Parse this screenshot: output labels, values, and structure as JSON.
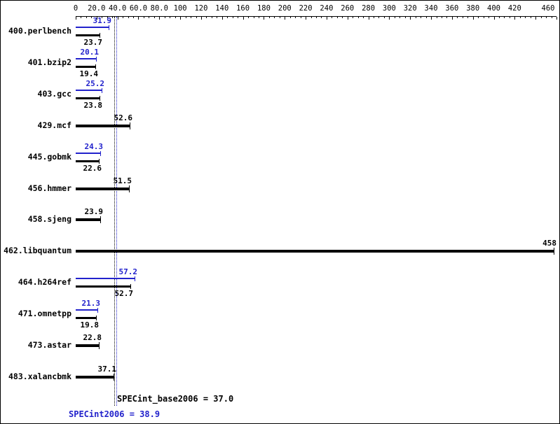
{
  "chart_data": {
    "type": "bar",
    "orientation": "horizontal",
    "title": "",
    "xlabel": "",
    "ylabel": "",
    "xlim": [
      0,
      460
    ],
    "grid": false,
    "legend": null,
    "colors": {
      "peak": "#2222cc",
      "base": "#000000"
    },
    "axis_tick_labels": [
      {
        "value": 0,
        "label": "0"
      },
      {
        "value": 20,
        "label": "20.0"
      },
      {
        "value": 40,
        "label": "40.0"
      },
      {
        "value": 60,
        "label": "60.0"
      },
      {
        "value": 80,
        "label": "80.0"
      },
      {
        "value": 100,
        "label": "100"
      },
      {
        "value": 120,
        "label": "120"
      },
      {
        "value": 140,
        "label": "140"
      },
      {
        "value": 160,
        "label": "160"
      },
      {
        "value": 180,
        "label": "180"
      },
      {
        "value": 200,
        "label": "200"
      },
      {
        "value": 220,
        "label": "220"
      },
      {
        "value": 240,
        "label": "240"
      },
      {
        "value": 260,
        "label": "260"
      },
      {
        "value": 280,
        "label": "280"
      },
      {
        "value": 300,
        "label": "300"
      },
      {
        "value": 320,
        "label": "320"
      },
      {
        "value": 340,
        "label": "340"
      },
      {
        "value": 360,
        "label": "360"
      },
      {
        "value": 380,
        "label": "380"
      },
      {
        "value": 400,
        "label": "400"
      },
      {
        "value": 420,
        "label": "420"
      },
      {
        "value": 460,
        "label": "460"
      }
    ],
    "benchmarks": [
      {
        "name": "400.perlbench",
        "peak": 31.9,
        "peak_label": "31.9",
        "base": 23.7,
        "base_label": "23.7"
      },
      {
        "name": "401.bzip2",
        "peak": 20.1,
        "peak_label": "20.1",
        "base": 19.4,
        "base_label": "19.4"
      },
      {
        "name": "403.gcc",
        "peak": 25.2,
        "peak_label": "25.2",
        "base": 23.8,
        "base_label": "23.8"
      },
      {
        "name": "429.mcf",
        "peak": null,
        "peak_label": null,
        "base": 52.6,
        "base_label": "52.6"
      },
      {
        "name": "445.gobmk",
        "peak": 24.3,
        "peak_label": "24.3",
        "base": 22.6,
        "base_label": "22.6"
      },
      {
        "name": "456.hmmer",
        "peak": null,
        "peak_label": null,
        "base": 51.5,
        "base_label": "51.5"
      },
      {
        "name": "458.sjeng",
        "peak": null,
        "peak_label": null,
        "base": 23.9,
        "base_label": "23.9"
      },
      {
        "name": "462.libquantum",
        "peak": null,
        "peak_label": null,
        "base": 458,
        "base_label": "458"
      },
      {
        "name": "464.h264ref",
        "peak": 57.2,
        "peak_label": "57.2",
        "base": 52.7,
        "base_label": "52.7"
      },
      {
        "name": "471.omnetpp",
        "peak": 21.3,
        "peak_label": "21.3",
        "base": 19.8,
        "base_label": "19.8"
      },
      {
        "name": "473.astar",
        "peak": null,
        "peak_label": null,
        "base": 22.8,
        "base_label": "22.8"
      },
      {
        "name": "483.xalancbmk",
        "peak": null,
        "peak_label": null,
        "base": 37.1,
        "base_label": "37.1"
      }
    ],
    "means": {
      "base": {
        "label": "SPECint_base2006 = 37.0",
        "value": 37.0
      },
      "peak": {
        "label": "SPECint2006 = 38.9",
        "value": 38.9
      }
    }
  }
}
